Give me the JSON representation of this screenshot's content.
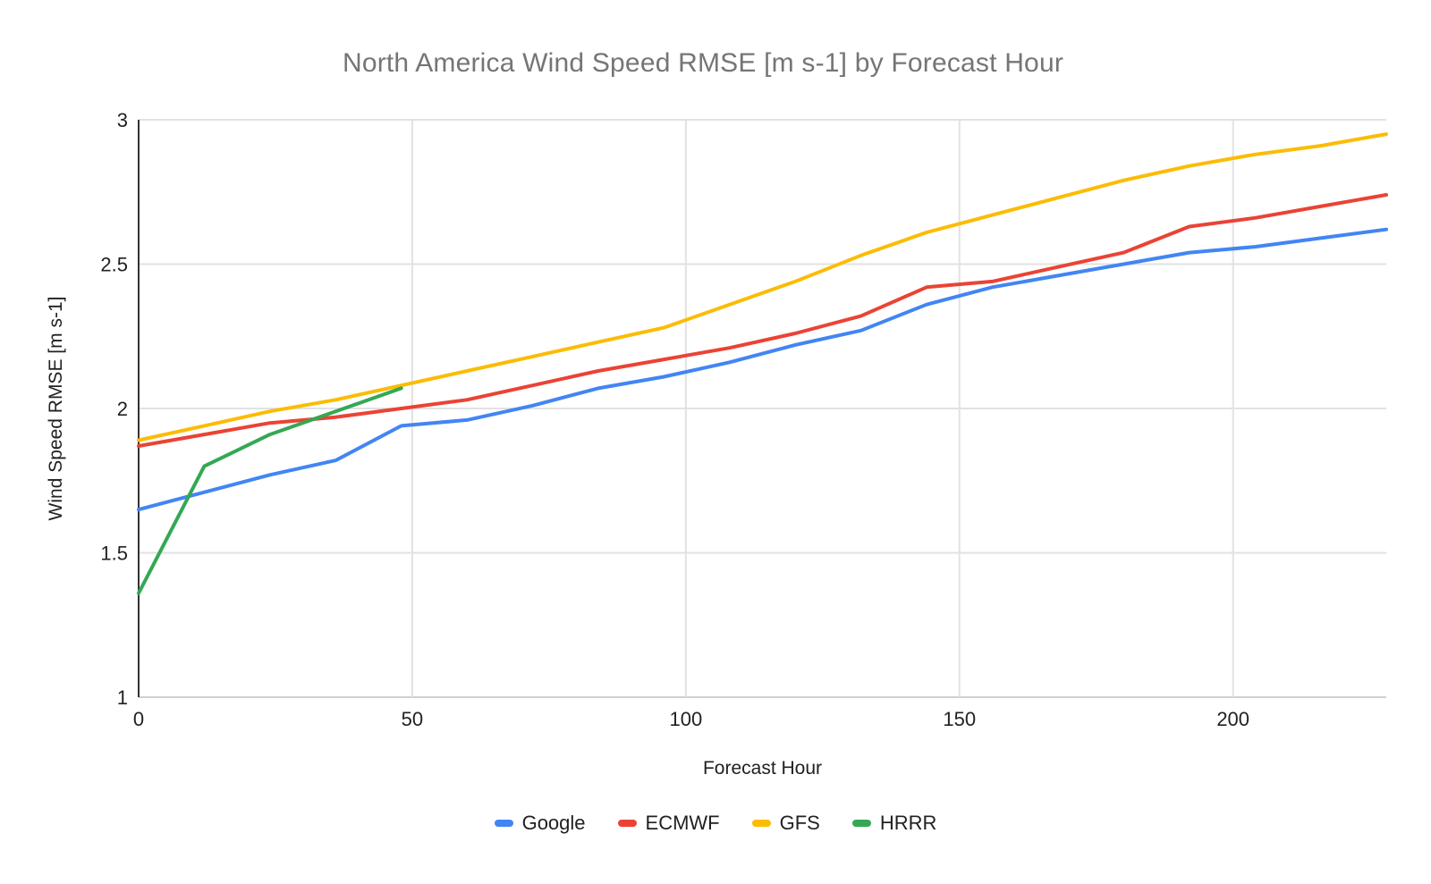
{
  "chart_data": {
    "type": "line",
    "title": "North America Wind Speed RMSE [m s-1] by Forecast Hour",
    "xlabel": "Forecast Hour",
    "ylabel": "Wind Speed RMSE [m s-1]",
    "xlim": [
      0,
      228
    ],
    "ylim": [
      1,
      3
    ],
    "x_ticks": [
      0,
      50,
      100,
      150,
      200
    ],
    "y_ticks": [
      1,
      1.5,
      2,
      2.5,
      3
    ],
    "grid": true,
    "legend_position": "bottom",
    "series": [
      {
        "name": "Google",
        "color": "#4285F4",
        "x": [
          0,
          12,
          24,
          36,
          48,
          60,
          72,
          84,
          96,
          108,
          120,
          132,
          144,
          156,
          168,
          180,
          192,
          204,
          216,
          228
        ],
        "values": [
          1.65,
          1.71,
          1.77,
          1.82,
          1.94,
          1.96,
          2.01,
          2.07,
          2.11,
          2.16,
          2.22,
          2.27,
          2.36,
          2.42,
          2.46,
          2.5,
          2.54,
          2.56,
          2.59,
          2.62
        ]
      },
      {
        "name": "ECMWF",
        "color": "#EA4335",
        "x": [
          0,
          12,
          24,
          36,
          48,
          60,
          72,
          84,
          96,
          108,
          120,
          132,
          144,
          156,
          168,
          180,
          192,
          204,
          216,
          228
        ],
        "values": [
          1.87,
          1.91,
          1.95,
          1.97,
          2.0,
          2.03,
          2.08,
          2.13,
          2.17,
          2.21,
          2.26,
          2.32,
          2.42,
          2.44,
          2.49,
          2.54,
          2.63,
          2.66,
          2.7,
          2.74
        ]
      },
      {
        "name": "GFS",
        "color": "#FBBC04",
        "x": [
          0,
          12,
          24,
          36,
          48,
          60,
          72,
          84,
          96,
          108,
          120,
          132,
          144,
          156,
          168,
          180,
          192,
          204,
          216,
          228
        ],
        "values": [
          1.89,
          1.94,
          1.99,
          2.03,
          2.08,
          2.13,
          2.18,
          2.23,
          2.28,
          2.36,
          2.44,
          2.53,
          2.61,
          2.67,
          2.73,
          2.79,
          2.84,
          2.88,
          2.91,
          2.95
        ]
      },
      {
        "name": "HRRR",
        "color": "#34A853",
        "x": [
          0,
          12,
          24,
          36,
          48
        ],
        "values": [
          1.36,
          1.8,
          1.91,
          1.99,
          2.07
        ]
      }
    ],
    "styles": {
      "grid_color": "#e2e2e2",
      "baseline_color": "#cfcfcf",
      "y_axis_line_color": "#333333",
      "title_color": "#757575",
      "label_color": "#212121"
    }
  }
}
